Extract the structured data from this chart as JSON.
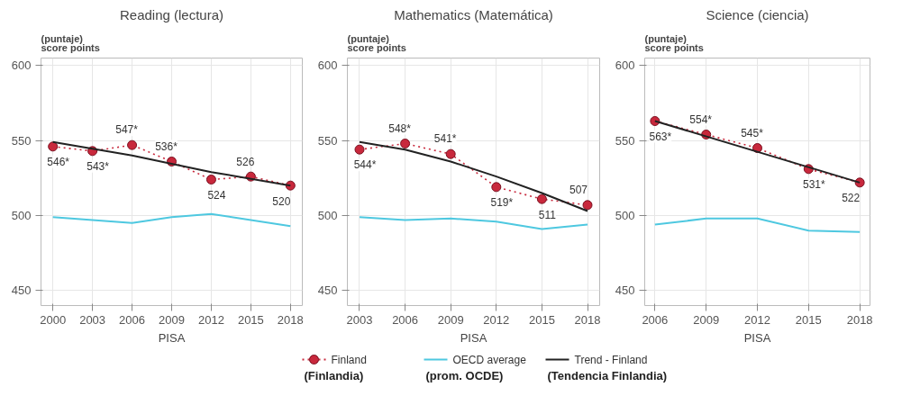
{
  "chart_data": [
    {
      "type": "line",
      "title": "Reading (lectura)",
      "ylabel": "(puntaje)\nscore points",
      "xlabel": "PISA",
      "x": [
        2000,
        2003,
        2006,
        2009,
        2012,
        2015,
        2018
      ],
      "xlim": [
        1999.1,
        2018.9
      ],
      "xticks": [
        2000,
        2003,
        2006,
        2009,
        2012,
        2015,
        2018
      ],
      "ylim": [
        440,
        605
      ],
      "yticks": [
        450,
        500,
        550,
        600
      ],
      "grid": true,
      "series": [
        {
          "color": "#c8283c",
          "line_style": "dotted",
          "marker": "circle",
          "values": [
            546,
            543,
            547,
            536,
            524,
            526,
            520
          ],
          "value_labels": [
            "546*",
            "543*",
            "547*",
            "536*",
            "524",
            "526",
            "520"
          ]
        },
        {
          "color": "#4ec8e0",
          "values": [
            499,
            497,
            495,
            499,
            501,
            497,
            493
          ]
        },
        {
          "color": "#222222",
          "x": [
            2000,
            2006,
            2012,
            2018
          ],
          "values": [
            549,
            540,
            529,
            520
          ]
        }
      ]
    },
    {
      "type": "line",
      "title": "Mathematics (Matemática)",
      "ylabel": "(puntaje)\nscore points",
      "xlabel": "PISA",
      "x": [
        2003,
        2006,
        2009,
        2012,
        2015,
        2018
      ],
      "xlim": [
        2002.2,
        2018.8
      ],
      "xticks": [
        2003,
        2006,
        2009,
        2012,
        2015,
        2018
      ],
      "ylim": [
        440,
        605
      ],
      "yticks": [
        450,
        500,
        550,
        600
      ],
      "grid": true,
      "legend": "bottom",
      "series": [
        {
          "name": "Finland\n(Finlandia)",
          "color": "#c8283c",
          "line_style": "dotted",
          "marker": "circle",
          "values": [
            544,
            548,
            541,
            519,
            511,
            507
          ],
          "value_labels": [
            "544*",
            "548*",
            "541*",
            "519*",
            "511",
            "507"
          ]
        },
        {
          "name": "OECD average\n(prom. OCDE)",
          "color": "#4ec8e0",
          "values": [
            499,
            497,
            498,
            496,
            491,
            494
          ]
        },
        {
          "name": "Trend - Finland\n(Tendencia Finlandia)",
          "color": "#222222",
          "x": [
            2003,
            2006,
            2009,
            2012,
            2015,
            2018
          ],
          "values": [
            549,
            544,
            536,
            526,
            515,
            503
          ]
        }
      ]
    },
    {
      "type": "line",
      "title": "Science (ciencia)",
      "ylabel": "(puntaje)\nscore points",
      "xlabel": "PISA",
      "x": [
        2006,
        2009,
        2012,
        2015,
        2018
      ],
      "xlim": [
        2005.4,
        2018.6
      ],
      "xticks": [
        2006,
        2009,
        2012,
        2015,
        2018
      ],
      "ylim": [
        440,
        605
      ],
      "yticks": [
        450,
        500,
        550,
        600
      ],
      "grid": true,
      "series": [
        {
          "color": "#c8283c",
          "line_style": "dotted",
          "marker": "circle",
          "values": [
            563,
            554,
            545,
            531,
            522
          ],
          "value_labels": [
            "563*",
            "554*",
            "545*",
            "531*",
            "522"
          ]
        },
        {
          "color": "#4ec8e0",
          "values": [
            494,
            498,
            498,
            490,
            489
          ]
        },
        {
          "color": "#222222",
          "x": [
            2006,
            2018
          ],
          "values": [
            563,
            522
          ]
        }
      ]
    }
  ]
}
